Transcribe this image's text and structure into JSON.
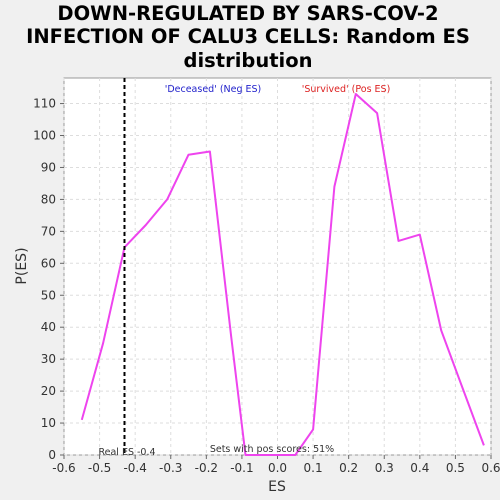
{
  "chart_data": {
    "type": "line",
    "title_lines": [
      "DOWN-REGULATED BY SARS-COV-2",
      "INFECTION OF CALU3 CELLS: Random ES",
      "distribution"
    ],
    "xlabel": "ES",
    "ylabel": "P(ES)",
    "xlim": [
      -0.6,
      0.6
    ],
    "ylim": [
      0,
      118
    ],
    "xticks": [
      -0.6,
      -0.5,
      -0.4,
      -0.3,
      -0.2,
      -0.1,
      0.0,
      0.1,
      0.2,
      0.3,
      0.4,
      0.5,
      0.6
    ],
    "xtick_labels": [
      "-0.6",
      "-0.5",
      "-0.4",
      "-0.3",
      "-0.2",
      "-0.1",
      "0.0",
      "0.1",
      "0.2",
      "0.3",
      "0.4",
      "0.5",
      "0.6"
    ],
    "yticks": [
      0,
      10,
      20,
      30,
      40,
      50,
      60,
      70,
      80,
      90,
      100,
      110
    ],
    "ytick_labels": [
      "0",
      "10",
      "20",
      "30",
      "40",
      "50",
      "60",
      "70",
      "80",
      "90",
      "100",
      "110"
    ],
    "grid": true,
    "series": [
      {
        "color": "#ee44ee",
        "x": [
          -0.55,
          -0.49,
          -0.43,
          -0.37,
          -0.31,
          -0.25,
          -0.19,
          -0.13,
          -0.09,
          -0.07,
          0.05,
          0.1,
          0.16,
          0.22,
          0.28,
          0.34,
          0.4,
          0.46,
          0.52,
          0.58
        ],
        "y": [
          11,
          35,
          65,
          72,
          80,
          94,
          95,
          37,
          0,
          0,
          0,
          8,
          84,
          113,
          107,
          67,
          69,
          39,
          21,
          3
        ]
      }
    ],
    "reference_line": {
      "x": -0.43,
      "label": "Real ES -0.4",
      "color": "#000000"
    },
    "annotations": {
      "neg_label": "'Deceased' (Neg ES)",
      "neg_color": "#2222cc",
      "pos_label": "'Survived' (Pos ES)",
      "pos_color": "#dd2222",
      "sets_label": "Sets with pos scores: 51%"
    }
  }
}
